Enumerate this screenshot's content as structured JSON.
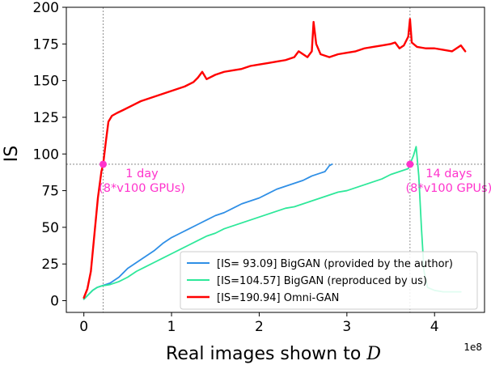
{
  "chart_data": {
    "type": "line",
    "xlabel": "Real images shown to ",
    "xlabel_symbol": "D",
    "ylabel": "IS",
    "x_offset_label": "1e8",
    "xlim": [
      -0.2,
      4.57
    ],
    "ylim": [
      -8,
      200
    ],
    "xticks": [
      {
        "value": 0,
        "label": "0"
      },
      {
        "value": 1,
        "label": "1"
      },
      {
        "value": 2,
        "label": "2"
      },
      {
        "value": 3,
        "label": "3"
      },
      {
        "value": 4,
        "label": "4"
      }
    ],
    "yticks": [
      {
        "value": 0,
        "label": "0"
      },
      {
        "value": 25,
        "label": "25"
      },
      {
        "value": 50,
        "label": "50"
      },
      {
        "value": 75,
        "label": "75"
      },
      {
        "value": 100,
        "label": "100"
      },
      {
        "value": 125,
        "label": "125"
      },
      {
        "value": 150,
        "label": "150"
      },
      {
        "value": 175,
        "label": "175"
      },
      {
        "value": 200,
        "label": "200"
      }
    ],
    "grid": false,
    "legend_position": "lower-right",
    "reference_lines": {
      "vertical": [
        0.22,
        3.72
      ],
      "horizontal": 93,
      "color": "#777777"
    },
    "series": [
      {
        "name": "[IS=  93.09] BigGAN (provided by the author)",
        "color": "#2f8fe6",
        "width": 1.8,
        "points": [
          [
            0.0,
            1
          ],
          [
            0.05,
            4
          ],
          [
            0.1,
            7
          ],
          [
            0.15,
            9
          ],
          [
            0.2,
            10
          ],
          [
            0.25,
            11
          ],
          [
            0.3,
            12
          ],
          [
            0.35,
            14
          ],
          [
            0.4,
            16
          ],
          [
            0.45,
            19
          ],
          [
            0.5,
            22
          ],
          [
            0.6,
            26
          ],
          [
            0.7,
            30
          ],
          [
            0.8,
            34
          ],
          [
            0.9,
            39
          ],
          [
            1.0,
            43
          ],
          [
            1.1,
            46
          ],
          [
            1.2,
            49
          ],
          [
            1.3,
            52
          ],
          [
            1.4,
            55
          ],
          [
            1.5,
            58
          ],
          [
            1.6,
            60
          ],
          [
            1.7,
            63
          ],
          [
            1.8,
            66
          ],
          [
            1.9,
            68
          ],
          [
            2.0,
            70
          ],
          [
            2.1,
            73
          ],
          [
            2.2,
            76
          ],
          [
            2.3,
            78
          ],
          [
            2.4,
            80
          ],
          [
            2.5,
            82
          ],
          [
            2.6,
            85
          ],
          [
            2.7,
            87
          ],
          [
            2.75,
            88
          ],
          [
            2.8,
            92
          ],
          [
            2.83,
            93
          ]
        ]
      },
      {
        "name": "[IS=104.57] BigGAN (reproduced by us)",
        "color": "#2ee89a",
        "width": 1.8,
        "points": [
          [
            0.0,
            1
          ],
          [
            0.05,
            4
          ],
          [
            0.1,
            7
          ],
          [
            0.15,
            9
          ],
          [
            0.2,
            10
          ],
          [
            0.3,
            11
          ],
          [
            0.4,
            13
          ],
          [
            0.5,
            16
          ],
          [
            0.6,
            20
          ],
          [
            0.7,
            23
          ],
          [
            0.8,
            26
          ],
          [
            0.9,
            29
          ],
          [
            1.0,
            32
          ],
          [
            1.1,
            35
          ],
          [
            1.2,
            38
          ],
          [
            1.3,
            41
          ],
          [
            1.4,
            44
          ],
          [
            1.5,
            46
          ],
          [
            1.6,
            49
          ],
          [
            1.7,
            51
          ],
          [
            1.8,
            53
          ],
          [
            1.9,
            55
          ],
          [
            2.0,
            57
          ],
          [
            2.1,
            59
          ],
          [
            2.2,
            61
          ],
          [
            2.3,
            63
          ],
          [
            2.4,
            64
          ],
          [
            2.5,
            66
          ],
          [
            2.6,
            68
          ],
          [
            2.7,
            70
          ],
          [
            2.8,
            72
          ],
          [
            2.9,
            74
          ],
          [
            3.0,
            75
          ],
          [
            3.1,
            77
          ],
          [
            3.2,
            79
          ],
          [
            3.3,
            81
          ],
          [
            3.4,
            83
          ],
          [
            3.5,
            86
          ],
          [
            3.6,
            88
          ],
          [
            3.7,
            90
          ],
          [
            3.76,
            99
          ],
          [
            3.79,
            105
          ],
          [
            3.82,
            85
          ],
          [
            3.85,
            50
          ],
          [
            3.88,
            20
          ],
          [
            3.92,
            9
          ],
          [
            4.0,
            7
          ],
          [
            4.1,
            6
          ],
          [
            4.2,
            6
          ],
          [
            4.3,
            6
          ]
        ]
      },
      {
        "name": "[IS=190.94] Omni-GAN",
        "color": "#ff0000",
        "width": 2.4,
        "points": [
          [
            0.0,
            2
          ],
          [
            0.04,
            8
          ],
          [
            0.08,
            20
          ],
          [
            0.12,
            45
          ],
          [
            0.16,
            70
          ],
          [
            0.2,
            88
          ],
          [
            0.22,
            93
          ],
          [
            0.25,
            108
          ],
          [
            0.28,
            122
          ],
          [
            0.32,
            126
          ],
          [
            0.38,
            128
          ],
          [
            0.45,
            130
          ],
          [
            0.55,
            133
          ],
          [
            0.65,
            136
          ],
          [
            0.75,
            138
          ],
          [
            0.85,
            140
          ],
          [
            0.95,
            142
          ],
          [
            1.05,
            144
          ],
          [
            1.15,
            146
          ],
          [
            1.25,
            149
          ],
          [
            1.3,
            152
          ],
          [
            1.35,
            156
          ],
          [
            1.4,
            151
          ],
          [
            1.5,
            154
          ],
          [
            1.6,
            156
          ],
          [
            1.7,
            157
          ],
          [
            1.8,
            158
          ],
          [
            1.9,
            160
          ],
          [
            2.0,
            161
          ],
          [
            2.1,
            162
          ],
          [
            2.2,
            163
          ],
          [
            2.3,
            164
          ],
          [
            2.4,
            166
          ],
          [
            2.45,
            170
          ],
          [
            2.5,
            168
          ],
          [
            2.55,
            166
          ],
          [
            2.6,
            170
          ],
          [
            2.62,
            190
          ],
          [
            2.65,
            175
          ],
          [
            2.7,
            168
          ],
          [
            2.8,
            166
          ],
          [
            2.9,
            168
          ],
          [
            3.0,
            169
          ],
          [
            3.1,
            170
          ],
          [
            3.2,
            172
          ],
          [
            3.3,
            173
          ],
          [
            3.4,
            174
          ],
          [
            3.5,
            175
          ],
          [
            3.55,
            176
          ],
          [
            3.6,
            172
          ],
          [
            3.65,
            174
          ],
          [
            3.7,
            180
          ],
          [
            3.72,
            192
          ],
          [
            3.74,
            176
          ],
          [
            3.8,
            173
          ],
          [
            3.9,
            172
          ],
          [
            4.0,
            172
          ],
          [
            4.1,
            171
          ],
          [
            4.2,
            170
          ],
          [
            4.3,
            174
          ],
          [
            4.35,
            170
          ]
        ]
      }
    ],
    "markers": [
      {
        "x": 0.22,
        "y": 93,
        "color": "#ff33cc"
      },
      {
        "x": 3.72,
        "y": 93,
        "color": "#ff33cc"
      }
    ],
    "annotations": [
      {
        "x": 0.22,
        "y": 93,
        "line1": "1 day",
        "line2": "(8*v100 GPUs)",
        "color": "#ff33cc"
      },
      {
        "x": 3.72,
        "y": 93,
        "line1": "14 days",
        "line2": "(8*v100 GPUs)",
        "color": "#ff33cc"
      }
    ]
  }
}
